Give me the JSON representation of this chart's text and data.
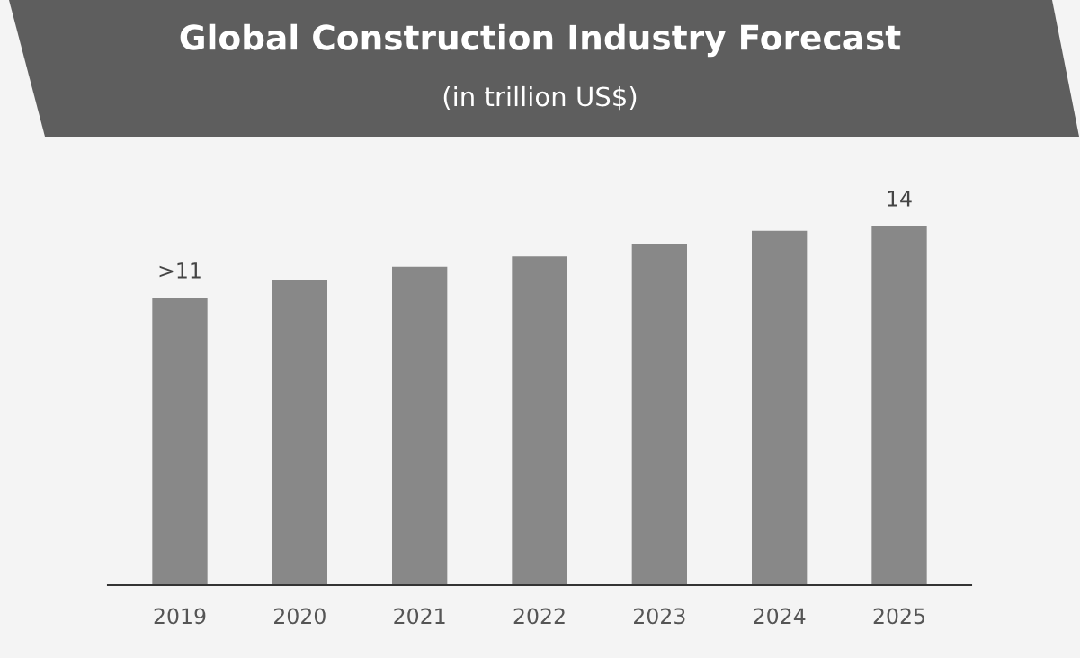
{
  "chart_data": {
    "type": "bar",
    "title": "Global Construction Industry Forecast",
    "subtitle": "(in trillion US$)",
    "categories": [
      "2019",
      "2020",
      "2021",
      "2022",
      "2023",
      "2024",
      "2025"
    ],
    "values": [
      11.2,
      11.9,
      12.4,
      12.8,
      13.3,
      13.8,
      14
    ],
    "value_labels": [
      ">11",
      null,
      null,
      null,
      null,
      null,
      "14"
    ],
    "color": "#888888",
    "grid": false,
    "legend": false
  }
}
